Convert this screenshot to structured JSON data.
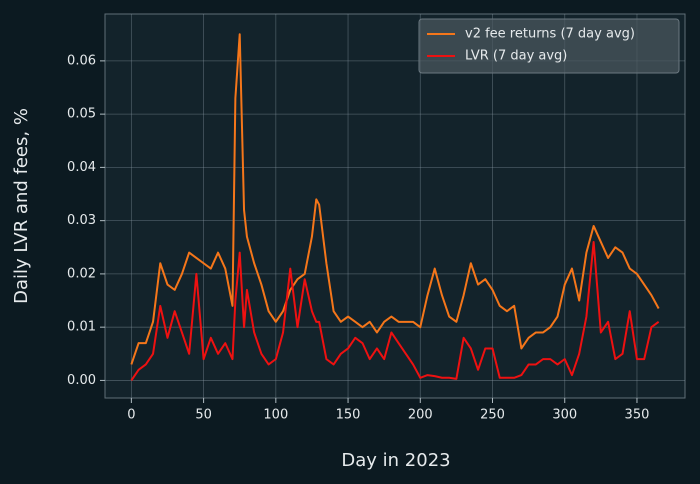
{
  "chart_data": {
    "type": "line",
    "xlabel": "Day in 2023",
    "ylabel": "Daily LVR and fees, %",
    "x": [
      0,
      5,
      10,
      15,
      20,
      25,
      30,
      35,
      40,
      45,
      50,
      55,
      60,
      65,
      70,
      72,
      75,
      78,
      80,
      85,
      90,
      95,
      100,
      105,
      110,
      115,
      120,
      125,
      128,
      130,
      135,
      140,
      145,
      150,
      155,
      160,
      165,
      170,
      175,
      180,
      185,
      190,
      195,
      200,
      205,
      210,
      215,
      220,
      225,
      230,
      235,
      240,
      245,
      250,
      255,
      260,
      265,
      270,
      275,
      280,
      285,
      290,
      295,
      300,
      305,
      310,
      315,
      320,
      325,
      330,
      335,
      340,
      345,
      350,
      355,
      360,
      365
    ],
    "series": [
      {
        "name": "v2 fee returns (7 day avg)",
        "color": "#f5761a",
        "values": [
          0.003,
          0.007,
          0.007,
          0.011,
          0.022,
          0.018,
          0.017,
          0.02,
          0.024,
          0.023,
          0.022,
          0.021,
          0.024,
          0.021,
          0.014,
          0.053,
          0.065,
          0.032,
          0.027,
          0.022,
          0.018,
          0.013,
          0.011,
          0.013,
          0.017,
          0.019,
          0.02,
          0.027,
          0.034,
          0.033,
          0.022,
          0.013,
          0.011,
          0.012,
          0.011,
          0.01,
          0.011,
          0.009,
          0.011,
          0.012,
          0.011,
          0.011,
          0.011,
          0.01,
          0.016,
          0.021,
          0.016,
          0.012,
          0.011,
          0.016,
          0.022,
          0.018,
          0.019,
          0.017,
          0.014,
          0.013,
          0.014,
          0.006,
          0.008,
          0.009,
          0.009,
          0.01,
          0.012,
          0.018,
          0.021,
          0.015,
          0.024,
          0.029,
          0.026,
          0.023,
          0.025,
          0.024,
          0.021,
          0.02,
          0.018,
          0.016,
          0.0135
        ]
      },
      {
        "name": "LVR (7 day avg)",
        "color": "#ee1111",
        "values": [
          0,
          0.002,
          0.003,
          0.005,
          0.014,
          0.008,
          0.013,
          0.009,
          0.005,
          0.02,
          0.004,
          0.008,
          0.005,
          0.007,
          0.004,
          0.015,
          0.024,
          0.01,
          0.017,
          0.009,
          0.005,
          0.003,
          0.004,
          0.009,
          0.021,
          0.01,
          0.019,
          0.013,
          0.011,
          0.011,
          0.004,
          0.003,
          0.005,
          0.006,
          0.008,
          0.007,
          0.004,
          0.006,
          0.004,
          0.009,
          0.007,
          0.005,
          0.003,
          0.0005,
          0.001,
          0.0008,
          0.0005,
          0.0005,
          0.0003,
          0.008,
          0.006,
          0.002,
          0.006,
          0.006,
          0.0005,
          0.0005,
          0.0005,
          0.001,
          0.003,
          0.003,
          0.004,
          0.004,
          0.003,
          0.004,
          0.001,
          0.005,
          0.012,
          0.026,
          0.009,
          0.011,
          0.004,
          0.005,
          0.013,
          0.004,
          0.004,
          0.01,
          0.011
        ]
      }
    ],
    "xlim": [
      -18.25,
      383.25
    ],
    "ylim": [
      -0.0033,
      0.0688
    ],
    "xticks": [
      0,
      50,
      100,
      150,
      200,
      250,
      300,
      350
    ],
    "yticks": [
      {
        "value": 0,
        "label": "0.00"
      },
      0.01,
      0.02,
      0.03,
      0.04,
      0.05,
      0.06
    ],
    "grid": true,
    "legend": "upper right"
  }
}
